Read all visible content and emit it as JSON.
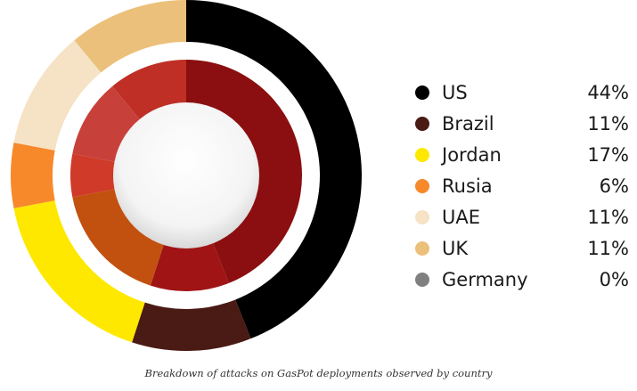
{
  "chart_data": {
    "type": "pie",
    "title": "",
    "series": [
      {
        "name": "US",
        "value": 44,
        "label": "44%",
        "color": "#000000"
      },
      {
        "name": "Brazil",
        "value": 11,
        "label": "11%",
        "color": "#4a1a14"
      },
      {
        "name": "Jordan",
        "value": 17,
        "label": "17%",
        "color": "#ffe800"
      },
      {
        "name": "Rusia",
        "value": 6,
        "label": "6%",
        "color": "#f7892b"
      },
      {
        "name": "UAE",
        "value": 11,
        "label": "11%",
        "color": "#f6e2c4"
      },
      {
        "name": "UK",
        "value": 11,
        "label": "11%",
        "color": "#ebc07a"
      },
      {
        "name": "Germany",
        "value": 0,
        "label": "0%",
        "color": "#808080"
      }
    ],
    "inner_ring_colors": [
      "#8b0f10",
      "#a01416",
      "#c2510f",
      "#d03a28",
      "#c7413a",
      "#bf2f25",
      "#808080"
    ],
    "legend_position": "right"
  },
  "caption": "Breakdown of attacks on GasPot deployments observed by country"
}
